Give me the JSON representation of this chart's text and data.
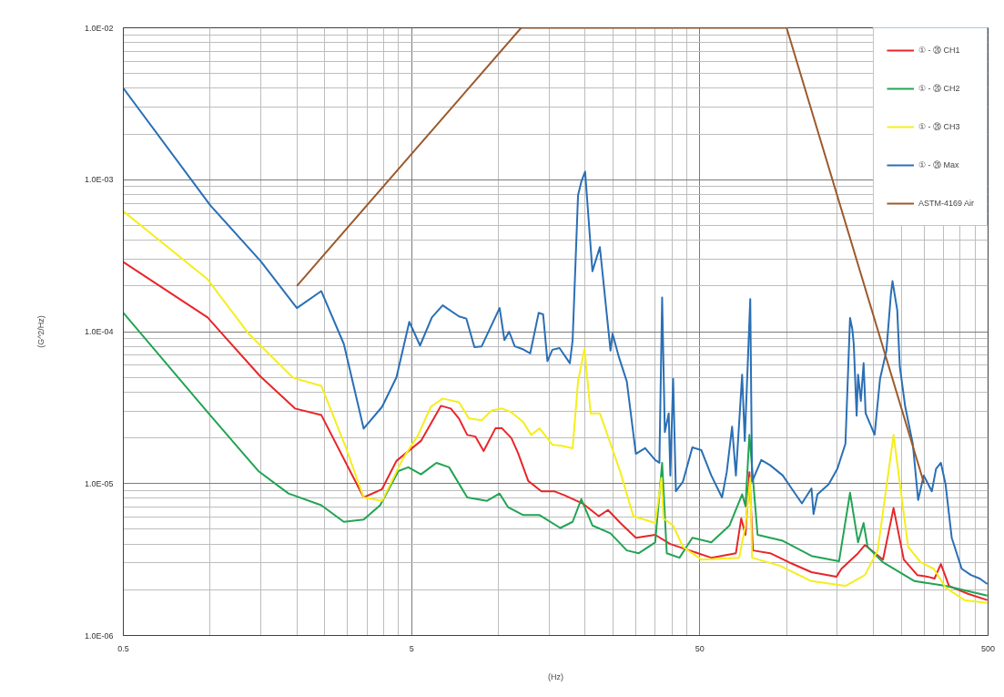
{
  "chart_data": {
    "type": "line",
    "xlabel": "(Hz)",
    "ylabel": "(G^2/Hz)",
    "log": "xy",
    "grid": true,
    "legend": "top right",
    "marker": "none",
    "line_style": "solid",
    "xlim": [
      0.5,
      500
    ],
    "ylim": [
      1e-06,
      0.01
    ],
    "xticks": [
      0.5,
      5,
      50,
      500
    ],
    "yticks": [
      {
        "value": 1e-06,
        "label": "1.0E-06"
      },
      {
        "value": 1e-05,
        "label": "1.0E-05"
      },
      {
        "value": 0.0001,
        "label": "1.0E-04"
      },
      {
        "value": 0.001,
        "label": "1.0E-03"
      },
      {
        "value": 0.01,
        "label": "1.0E-02"
      }
    ],
    "series": [
      {
        "name": "① - ⑳ CH1",
        "color": "#e8262a",
        "x": [
          0.5,
          0.98,
          1.49,
          1.97,
          2.43,
          3.41,
          3.95,
          4.43,
          5.39,
          6.32,
          6.84,
          7.3,
          7.8,
          8.32,
          8.89,
          9.77,
          10.3,
          11.1,
          11.7,
          12.7,
          14.1,
          15.6,
          16.9,
          19.6,
          22.3,
          24.0,
          26.5,
          30.0,
          35.0,
          39.5,
          47.1,
          54.8,
          66.7,
          69.6,
          72.0,
          74.3,
          76.4,
          87.7,
          102,
          122,
          149,
          155,
          177,
          187,
          216,
          235,
          255,
          284,
          308,
          326,
          343,
          366,
          426,
          497
        ],
        "values": [
          0.000287,
          0.000124,
          5.1e-05,
          3.12e-05,
          2.83e-05,
          8.1e-06,
          9.2e-06,
          1.41e-05,
          1.91e-05,
          3.25e-05,
          3.12e-05,
          2.68e-05,
          2.09e-05,
          2.04e-05,
          1.64e-05,
          2.31e-05,
          2.31e-05,
          1.99e-05,
          1.59e-05,
          1.04e-05,
          8.9e-06,
          8.9e-06,
          8.4e-06,
          7.4e-06,
          6.1e-06,
          6.7e-06,
          5.5e-06,
          4.4e-06,
          4.6e-06,
          4e-06,
          3.58e-06,
          3.25e-06,
          3.48e-06,
          5.9e-06,
          4.6e-06,
          1.19e-05,
          3.63e-06,
          3.48e-06,
          3.03e-06,
          2.61e-06,
          2.44e-06,
          2.75e-06,
          3.48e-06,
          3.94e-06,
          3.16e-06,
          6.9e-06,
          3.16e-06,
          2.5e-06,
          2.44e-06,
          2.37e-06,
          2.95e-06,
          2.12e-06,
          1.88e-06,
          1.71e-06
        ]
      },
      {
        "name": "① - ⑳ CH2",
        "color": "#21a453",
        "x": [
          0.5,
          0.98,
          1.47,
          1.87,
          2.43,
          2.91,
          3.41,
          3.89,
          4.5,
          4.87,
          5.39,
          6.1,
          6.75,
          7.8,
          9.14,
          10.1,
          10.8,
          12.2,
          13.9,
          16.4,
          18.1,
          19.4,
          21.2,
          24.5,
          27.9,
          30.7,
          35.0,
          37.0,
          38.4,
          42.5,
          47.1,
          54.8,
          63.4,
          70.1,
          72.0,
          74.3,
          79.3,
          97.0,
          122,
          152,
          166,
          177,
          185,
          191,
          216,
          278,
          356,
          497
        ],
        "values": [
          0.000133,
          2.95e-05,
          1.21e-05,
          8.6e-06,
          7.2e-06,
          5.6e-06,
          5.8e-06,
          7.2e-06,
          1.21e-05,
          1.28e-05,
          1.15e-05,
          1.37e-05,
          1.28e-05,
          8.1e-06,
          7.7e-06,
          8.6e-06,
          7e-06,
          6.2e-06,
          6.2e-06,
          5.1e-06,
          5.6e-06,
          7.9e-06,
          5.3e-06,
          4.7e-06,
          3.63e-06,
          3.48e-06,
          4.1e-06,
          1.37e-05,
          3.48e-06,
          3.25e-06,
          4.4e-06,
          4.1e-06,
          5.3e-06,
          8.5e-06,
          7.1e-06,
          2.09e-05,
          4.6e-06,
          4.2e-06,
          3.34e-06,
          3.08e-06,
          8.7e-06,
          4.1e-06,
          5.5e-06,
          3.83e-06,
          3.03e-06,
          2.28e-06,
          2.12e-06,
          1.83e-06
        ]
      },
      {
        "name": "① - ⑳ CH3",
        "color": "#f5ee1c",
        "x": [
          0.5,
          0.98,
          1.36,
          1.94,
          2.43,
          2.95,
          3.41,
          3.95,
          4.66,
          5.27,
          5.83,
          6.41,
          7.3,
          7.91,
          8.75,
          9.48,
          10.3,
          11.1,
          12.2,
          13.0,
          13.9,
          15.4,
          16.4,
          18.1,
          18.9,
          19.9,
          20.9,
          22.5,
          24.5,
          26.5,
          29.4,
          35.0,
          36.8,
          37.4,
          40.4,
          43.7,
          50.6,
          68.5,
          72.0,
          74.8,
          75.9,
          95.1,
          122,
          160,
          187,
          207,
          235,
          264,
          292,
          324,
          356,
          414,
          497
        ],
        "values": [
          0.00062,
          0.000221,
          9.7e-05,
          4.97e-05,
          4.4e-05,
          1.75e-05,
          8.1e-06,
          7.7e-06,
          1.45e-05,
          2.09e-05,
          3.2e-05,
          3.63e-05,
          3.43e-05,
          2.68e-05,
          2.61e-05,
          3.03e-05,
          3.12e-05,
          2.95e-05,
          2.54e-05,
          2.09e-05,
          2.31e-05,
          1.8e-05,
          1.78e-05,
          1.71e-05,
          4.7e-05,
          7.7e-05,
          2.9e-05,
          2.9e-05,
          1.83e-05,
          1.19e-05,
          6.1e-06,
          5.5e-06,
          1.09e-05,
          5.9e-06,
          5.3e-06,
          3.83e-06,
          3.16e-06,
          3.25e-06,
          5.3e-06,
          1.09e-05,
          3.25e-06,
          2.87e-06,
          2.28e-06,
          2.12e-06,
          2.5e-06,
          3.63e-06,
          2.09e-05,
          3.83e-06,
          3.03e-06,
          2.75e-06,
          2.07e-06,
          1.71e-06,
          1.64e-06
        ]
      },
      {
        "name": "① - ⑳ Max",
        "color": "#2a6fb5",
        "x": [
          0.5,
          1.0,
          1.5,
          2.0,
          2.43,
          2.91,
          3.41,
          3.95,
          4.43,
          4.91,
          5.35,
          5.88,
          6.41,
          7.3,
          7.74,
          8.26,
          8.75,
          10.1,
          10.5,
          10.9,
          11.4,
          12.1,
          12.9,
          13.8,
          14.3,
          14.8,
          15.4,
          16.3,
          17.7,
          18.1,
          18.9,
          19.4,
          20.0,
          21.2,
          22.5,
          24.5,
          24.9,
          26.2,
          27.9,
          30.0,
          32.3,
          35.0,
          36.2,
          37.0,
          37.8,
          39.0,
          39.5,
          40.4,
          41.3,
          43.7,
          47.1,
          50.6,
          54.8,
          59.7,
          62.0,
          64.7,
          66.7,
          70.1,
          71.6,
          74.8,
          75.9,
          81.7,
          87.7,
          97.0,
          104,
          113,
          122,
          124,
          128,
          140,
          150,
          160,
          166,
          169,
          171,
          175,
          177,
          181,
          185,
          188,
          202,
          211,
          222,
          230,
          233,
          242,
          247,
          258,
          274,
          286,
          299,
          319,
          330,
          343,
          356,
          374,
          405,
          436,
          468,
          497
        ],
        "values": [
          0.004,
          0.00068,
          0.00029,
          0.000143,
          0.000185,
          8.3e-05,
          2.3e-05,
          3.2e-05,
          5e-05,
          0.000116,
          8.1e-05,
          0.000124,
          0.000149,
          0.000126,
          0.000122,
          7.9e-05,
          8e-05,
          0.000143,
          8.8e-05,
          0.0001,
          8e-05,
          7.7e-05,
          7.2e-05,
          0.000133,
          0.00013,
          6.4e-05,
          7.6e-05,
          7.8e-05,
          6.2e-05,
          8.8e-05,
          0.00079,
          0.00097,
          0.00113,
          0.00025,
          0.00036,
          7.5e-05,
          9.7e-05,
          6.8e-05,
          4.7e-05,
          1.57e-05,
          1.71e-05,
          1.43e-05,
          1.37e-05,
          0.000168,
          2.18e-05,
          2.9e-05,
          1.13e-05,
          4.9e-05,
          8.9e-06,
          1.03e-05,
          1.73e-05,
          1.66e-05,
          1.13e-05,
          8.1e-06,
          1.19e-05,
          2.37e-05,
          1.13e-05,
          5.2e-05,
          1.91e-05,
          0.000164,
          1.03e-05,
          1.43e-05,
          1.32e-05,
          1.13e-05,
          9.3e-06,
          7.4e-06,
          9.3e-06,
          6.3e-06,
          8.5e-06,
          9.9e-06,
          1.25e-05,
          1.83e-05,
          0.000123,
          0.000104,
          8.3e-05,
          2.8e-05,
          5.2e-05,
          3.5e-05,
          6.2e-05,
          2.9e-05,
          2.1e-05,
          4.9e-05,
          7.5e-05,
          0.000175,
          0.000215,
          0.000139,
          5.9e-05,
          3.2e-05,
          1.83e-05,
          7.8e-06,
          1.13e-05,
          8.9e-06,
          1.25e-05,
          1.37e-05,
          9.9e-06,
          4.4e-06,
          2.75e-06,
          2.5e-06,
          2.37e-06,
          2.18e-06
        ]
      },
      {
        "name": "ASTM-4169 Air",
        "color": "#9c5a2c",
        "x": [
          2,
          12,
          100,
          300
        ],
        "values": [
          0.0002,
          0.01,
          0.01,
          1e-05
        ]
      }
    ]
  }
}
